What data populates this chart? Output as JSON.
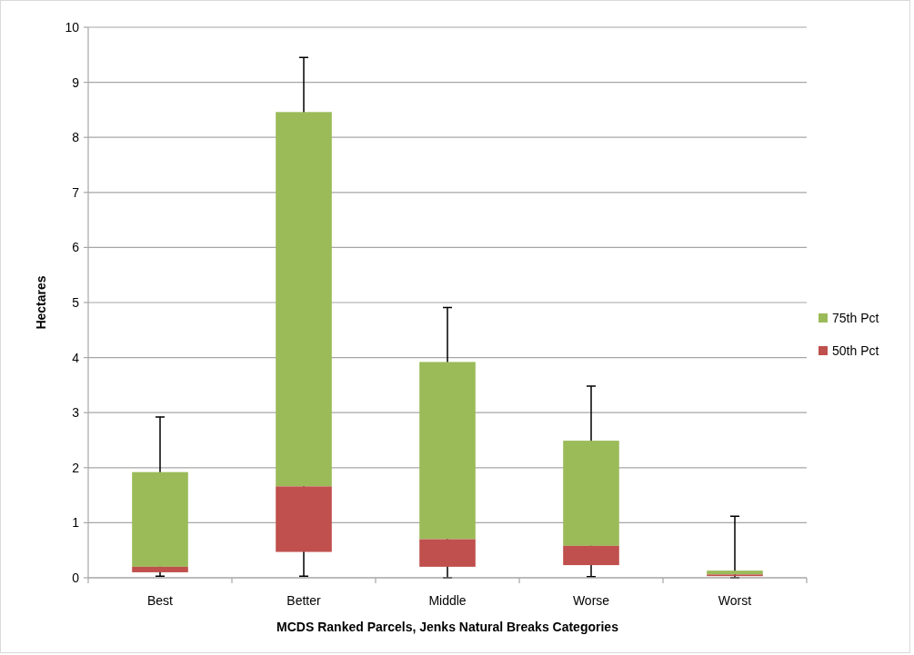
{
  "chart_data": {
    "type": "bar",
    "categories": [
      "Best",
      "Better",
      "Middle",
      "Worse",
      "Worst"
    ],
    "series": [
      {
        "name": "75th Pct",
        "color": "#9bbb59",
        "base": [
          0.2,
          1.66,
          0.7,
          0.58,
          0.06
        ],
        "values": [
          1.72,
          6.8,
          3.22,
          1.91,
          0.07
        ],
        "errors": [
          [
            0.03,
            2.92
          ],
          [
            0.03,
            9.45
          ],
          [
            0,
            4.91
          ],
          [
            0.02,
            3.48
          ],
          [
            0,
            1.12
          ]
        ]
      },
      {
        "name": "50th Pct",
        "color": "#c0504d",
        "base": [
          0.1,
          0.47,
          0.2,
          0.23,
          0.03
        ],
        "values": [
          0.1,
          1.19,
          0.5,
          0.35,
          0.03
        ]
      }
    ],
    "xlabel": "MCDS Ranked Parcels, Jenks Natural Breaks Categories",
    "ylabel": "Hectares",
    "ylim": [
      0,
      10
    ],
    "yticks": [
      0,
      1,
      2,
      3,
      4,
      5,
      6,
      7,
      8,
      9,
      10
    ],
    "grid": "y",
    "legend": "right"
  }
}
